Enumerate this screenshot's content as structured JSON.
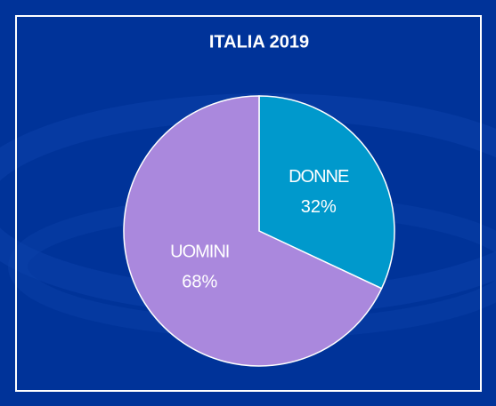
{
  "chart_data": {
    "type": "pie",
    "title": "ITALIA 2019",
    "categories": [
      "DONNE",
      "UOMINI"
    ],
    "values": [
      32,
      68
    ],
    "value_labels": [
      "32%",
      "68%"
    ],
    "colors": [
      "#0099cc",
      "#aa88dd"
    ]
  }
}
